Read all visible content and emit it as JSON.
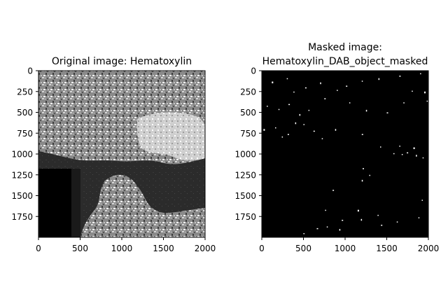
{
  "figure": {
    "background": "#ffffff"
  },
  "chart_data": [
    {
      "type": "image",
      "title": "Original image: Hematoxylin",
      "colormap": "grayscale",
      "extent": {
        "x": [
          0,
          2000
        ],
        "y": [
          0,
          2000
        ]
      },
      "xticks": [
        0,
        500,
        1000,
        1500,
        2000
      ],
      "yticks": [
        0,
        250,
        500,
        750,
        1000,
        1250,
        1500,
        1750
      ],
      "x_tick_labels": [
        "0",
        "500",
        "1000",
        "1500",
        "2000"
      ],
      "y_tick_labels": [
        "0",
        "250",
        "500",
        "750",
        "1000",
        "1250",
        "1500",
        "1750"
      ],
      "regions": [
        {
          "name": "textured-tissue-top",
          "x": [
            0,
            2000
          ],
          "y": [
            0,
            1000
          ],
          "tone": "mid-gray"
        },
        {
          "name": "bright-patch",
          "x": [
            1200,
            2000
          ],
          "y": [
            500,
            1100
          ],
          "tone": "light-gray"
        },
        {
          "name": "black-block",
          "x": [
            0,
            400
          ],
          "y": [
            1180,
            2000
          ],
          "tone": "black"
        },
        {
          "name": "dark-background",
          "x": [
            400,
            2000
          ],
          "y": [
            1000,
            2000
          ],
          "tone": "dark-gray"
        }
      ]
    },
    {
      "type": "image",
      "title": "Masked image:\nHematoxylin_DAB_object_masked",
      "title_lines": [
        "Masked image:",
        "Hematoxylin_DAB_object_masked"
      ],
      "colormap": "binary",
      "extent": {
        "x": [
          0,
          2000
        ],
        "y": [
          0,
          2000
        ]
      },
      "xticks": [
        0,
        500,
        1000,
        1500,
        2000
      ],
      "yticks": [
        0,
        250,
        500,
        750,
        1000,
        1250,
        1500,
        1750
      ],
      "x_tick_labels": [
        "0",
        "500",
        "1000",
        "1500",
        "2000"
      ],
      "y_tick_labels": [
        "0",
        "250",
        "500",
        "750",
        "1000",
        "1250",
        "1500",
        "1750"
      ],
      "mask_points": [
        [
          120,
          130
        ],
        [
          300,
          90
        ],
        [
          380,
          250
        ],
        [
          520,
          200
        ],
        [
          700,
          140
        ],
        [
          900,
          230
        ],
        [
          1010,
          180
        ],
        [
          1200,
          120
        ],
        [
          1400,
          90
        ],
        [
          1650,
          60
        ],
        [
          1900,
          30
        ],
        [
          1800,
          240
        ],
        [
          1950,
          250
        ],
        [
          60,
          420
        ],
        [
          200,
          460
        ],
        [
          320,
          400
        ],
        [
          450,
          520
        ],
        [
          560,
          470
        ],
        [
          750,
          330
        ],
        [
          1050,
          380
        ],
        [
          1250,
          470
        ],
        [
          1500,
          500
        ],
        [
          1700,
          380
        ],
        [
          1980,
          360
        ],
        [
          20,
          700
        ],
        [
          160,
          680
        ],
        [
          240,
          790
        ],
        [
          310,
          760
        ],
        [
          400,
          620
        ],
        [
          500,
          640
        ],
        [
          620,
          720
        ],
        [
          720,
          810
        ],
        [
          880,
          700
        ],
        [
          1200,
          760
        ],
        [
          1420,
          910
        ],
        [
          1650,
          900
        ],
        [
          1820,
          920
        ],
        [
          1580,
          990
        ],
        [
          1680,
          1000
        ],
        [
          1740,
          980
        ],
        [
          1850,
          1010
        ],
        [
          1930,
          1040
        ],
        [
          1210,
          1170
        ],
        [
          1290,
          1250
        ],
        [
          1200,
          1310
        ],
        [
          850,
          1430
        ],
        [
          1920,
          1550
        ],
        [
          760,
          1670
        ],
        [
          1150,
          1670
        ],
        [
          1390,
          1730
        ],
        [
          1620,
          1810
        ],
        [
          960,
          1790
        ],
        [
          1190,
          1780
        ],
        [
          500,
          1950
        ],
        [
          660,
          1890
        ],
        [
          780,
          1870
        ],
        [
          930,
          1900
        ],
        [
          1430,
          1850
        ],
        [
          1880,
          1760
        ]
      ]
    }
  ]
}
